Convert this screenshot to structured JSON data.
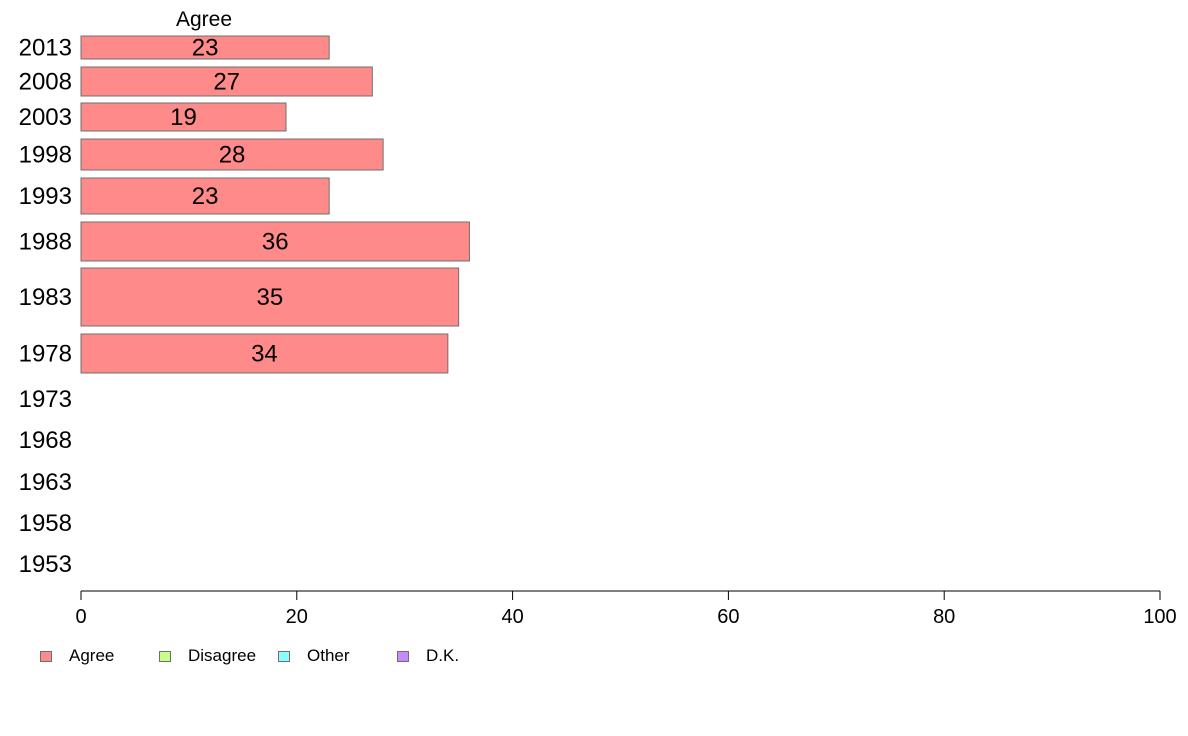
{
  "chart_data": {
    "type": "bar",
    "orientation": "horizontal",
    "stacked": true,
    "series_header": "Agree",
    "categories": [
      "2013",
      "2008",
      "2003",
      "1998",
      "1993",
      "1988",
      "1983",
      "1978",
      "1973",
      "1968",
      "1963",
      "1958",
      "1953"
    ],
    "series": [
      {
        "name": "Agree",
        "color": "#ff8a8a",
        "values": [
          23,
          27,
          19,
          28,
          23,
          36,
          35,
          34,
          null,
          null,
          null,
          null,
          null
        ]
      }
    ],
    "data_labels": [
      "23",
      "27",
      "19",
      "28",
      "23",
      "36",
      "35",
      "34",
      "",
      "",
      "",
      "",
      ""
    ],
    "xlim": [
      0,
      100
    ],
    "xticks": [
      0,
      20,
      40,
      60,
      80,
      100
    ],
    "grid": false,
    "legend_position": "bottom-left",
    "legend": [
      {
        "label": "Agree",
        "color": "#ff8a8a"
      },
      {
        "label": "Disagree",
        "color": "#c6ff8a"
      },
      {
        "label": "Other",
        "color": "#8affff"
      },
      {
        "label": "D.K.",
        "color": "#c68aff"
      }
    ]
  }
}
